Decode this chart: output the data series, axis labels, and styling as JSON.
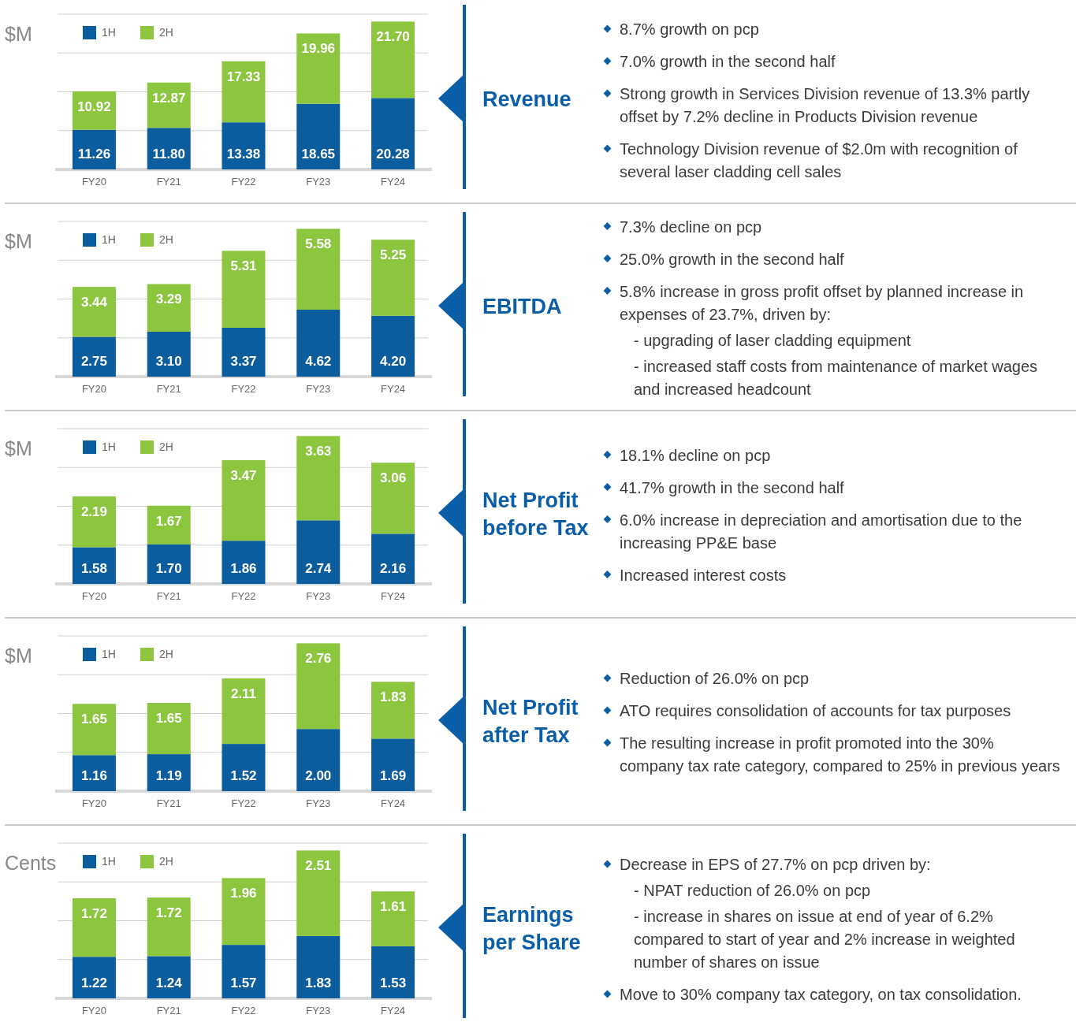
{
  "chart_data": [
    {
      "type": "bar",
      "stacked": true,
      "ylabel": "$M",
      "categories": [
        "FY20",
        "FY21",
        "FY22",
        "FY23",
        "FY24"
      ],
      "legend": "top left",
      "grid": "y",
      "series": [
        {
          "name": "1H",
          "color": "#0b5d9e",
          "values": [
            11.26,
            11.8,
            13.38,
            18.65,
            20.28
          ],
          "value_labels": [
            "11.26",
            "11.80",
            "13.38",
            "18.65",
            "20.28"
          ]
        },
        {
          "name": "2H",
          "color": "#8cc63f",
          "values": [
            10.92,
            12.87,
            17.33,
            19.96,
            21.7
          ],
          "value_labels": [
            "10.92",
            "12.87",
            "17.33",
            "19.96",
            "21.70"
          ]
        }
      ]
    },
    {
      "type": "other",
      "title": "Revenue",
      "annotations": [
        "8.7% growth on pcp",
        "7.0% growth in the second half",
        "Strong growth in Services Division revenue of 13.3% partly offset by 7.2% decline in Products Division revenue",
        "Technology Division revenue of $2.0m with recognition of several laser cladding cell sales"
      ]
    },
    {
      "type": "bar",
      "stacked": true,
      "ylabel": "$M",
      "categories": [
        "FY20",
        "FY21",
        "FY22",
        "FY23",
        "FY24"
      ],
      "legend": "top left",
      "grid": "y",
      "series": [
        {
          "name": "1H",
          "color": "#0b5d9e",
          "values": [
            2.75,
            3.1,
            3.37,
            4.62,
            4.2
          ],
          "value_labels": [
            "2.75",
            "3.10",
            "3.37",
            "4.62",
            "4.20"
          ]
        },
        {
          "name": "2H",
          "color": "#8cc63f",
          "values": [
            3.44,
            3.29,
            5.31,
            5.58,
            5.25
          ],
          "value_labels": [
            "3.44",
            "3.29",
            "5.31",
            "5.58",
            "5.25"
          ]
        }
      ]
    },
    {
      "type": "other",
      "title": "EBITDA",
      "annotations": [
        "7.3% decline on pcp",
        "25.0% growth in the second half",
        "5.8% increase in gross profit offset by planned increase in expenses of 23.7%, driven by:",
        "- upgrading of laser cladding equipment",
        "- increased staff costs from maintenance of market wages and increased headcount"
      ]
    },
    {
      "type": "bar",
      "stacked": true,
      "ylabel": "$M",
      "categories": [
        "FY20",
        "FY21",
        "FY22",
        "FY23",
        "FY24"
      ],
      "legend": "top left",
      "grid": "y",
      "series": [
        {
          "name": "1H",
          "color": "#0b5d9e",
          "values": [
            1.58,
            1.7,
            1.86,
            2.74,
            2.16
          ],
          "value_labels": [
            "1.58",
            "1.70",
            "1.86",
            "2.74",
            "2.16"
          ]
        },
        {
          "name": "2H",
          "color": "#8cc63f",
          "values": [
            2.19,
            1.67,
            3.47,
            3.63,
            3.06
          ],
          "value_labels": [
            "2.19",
            "1.67",
            "3.47",
            "3.63",
            "3.06"
          ]
        }
      ]
    },
    {
      "type": "other",
      "title": "Net Profit before Tax",
      "annotations": [
        "18.1% decline on pcp",
        "41.7% growth in the second half",
        "6.0% increase in depreciation and amortisation due to the increasing PP&E base",
        "Increased interest costs"
      ]
    },
    {
      "type": "bar",
      "stacked": true,
      "ylabel": "$M",
      "categories": [
        "FY20",
        "FY21",
        "FY22",
        "FY23",
        "FY24"
      ],
      "legend": "top left",
      "grid": "y",
      "series": [
        {
          "name": "1H",
          "color": "#0b5d9e",
          "values": [
            1.16,
            1.19,
            1.52,
            2.0,
            1.69
          ],
          "value_labels": [
            "1.16",
            "1.19",
            "1.52",
            "2.00",
            "1.69"
          ]
        },
        {
          "name": "2H",
          "color": "#8cc63f",
          "values": [
            1.65,
            1.65,
            2.11,
            2.76,
            1.83
          ],
          "value_labels": [
            "1.65",
            "1.65",
            "2.11",
            "2.76",
            "1.83"
          ]
        }
      ]
    },
    {
      "type": "other",
      "title": "Net Profit after Tax",
      "annotations": [
        "Reduction of 26.0% on pcp",
        "ATO requires consolidation of accounts for tax purposes",
        "The resulting increase in profit promoted into the 30%  company tax rate category, compared to 25% in previous years"
      ]
    },
    {
      "type": "bar",
      "stacked": true,
      "ylabel": "Cents",
      "categories": [
        "FY20",
        "FY21",
        "FY22",
        "FY23",
        "FY24"
      ],
      "legend": "top left",
      "grid": "y",
      "series": [
        {
          "name": "1H",
          "color": "#0b5d9e",
          "values": [
            1.22,
            1.24,
            1.57,
            1.83,
            1.53
          ],
          "value_labels": [
            "1.22",
            "1.24",
            "1.57",
            "1.83",
            "1.53"
          ]
        },
        {
          "name": "2H",
          "color": "#8cc63f",
          "values": [
            1.72,
            1.72,
            1.96,
            2.51,
            1.61
          ],
          "value_labels": [
            "1.72",
            "1.72",
            "1.96",
            "2.51",
            "1.61"
          ]
        }
      ]
    },
    {
      "type": "other",
      "title": "Earnings per Share",
      "annotations": [
        "Decrease in EPS of 27.7% on pcp driven by:",
        "- NPAT reduction of 26.0% on pcp",
        "- increase in shares on issue at end of year of 6.2% compared to start of year and 2% increase in weighted number of shares on issue",
        "Move to 30% company tax category, on tax consolidation."
      ]
    }
  ]
}
